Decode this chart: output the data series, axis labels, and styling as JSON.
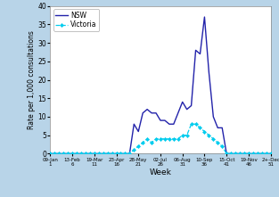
{
  "title": "",
  "xlabel": "Week",
  "ylabel": "Rate per 1,000 consultations",
  "ylim": [
    0,
    40
  ],
  "yticks": [
    0,
    5,
    10,
    15,
    20,
    25,
    30,
    35,
    40
  ],
  "background_color": "#b8d4e8",
  "plot_background": "#ffffff",
  "nsw_color": "#2222aa",
  "vic_color": "#00ccee",
  "xtick_labels": [
    "09-Jan\n1",
    "13-Feb\n6",
    "19-Mar\n11",
    "23-Apr\n16",
    "28-May\n21",
    "02-Jul\n26",
    "06-Aug\n31",
    "10-Sep\n36",
    "15-Oct\n41",
    "19-Nov\n46",
    "2+-Dec\n51"
  ],
  "nsw_x": [
    1,
    2,
    3,
    4,
    5,
    6,
    7,
    8,
    9,
    10,
    11,
    12,
    13,
    14,
    15,
    16,
    17,
    18,
    19,
    20,
    21,
    22,
    23,
    24,
    25,
    26,
    27,
    28,
    29,
    30,
    31,
    32,
    33,
    34,
    35,
    36,
    37,
    38,
    39,
    40,
    41,
    42,
    43,
    44,
    45,
    46,
    47,
    48,
    49,
    50,
    51
  ],
  "nsw_y": [
    0,
    0,
    0,
    0,
    0,
    0,
    0,
    0,
    0,
    0,
    0,
    0,
    0,
    0,
    0,
    0,
    0,
    0,
    0,
    8,
    6,
    11,
    12,
    11,
    11,
    9,
    9,
    8,
    8,
    11,
    14,
    12,
    13,
    28,
    27,
    37,
    22,
    10,
    7,
    7,
    0,
    0,
    0,
    0,
    0,
    0,
    0,
    0,
    0,
    0,
    0
  ],
  "vic_x": [
    1,
    2,
    3,
    4,
    5,
    6,
    7,
    8,
    9,
    10,
    11,
    12,
    13,
    14,
    15,
    16,
    17,
    18,
    19,
    20,
    21,
    22,
    23,
    24,
    25,
    26,
    27,
    28,
    29,
    30,
    31,
    32,
    33,
    34,
    35,
    36,
    37,
    38,
    39,
    40,
    41,
    42,
    43,
    44,
    45,
    46,
    47,
    48,
    49,
    50,
    51
  ],
  "vic_y": [
    0,
    0,
    0,
    0,
    0,
    0,
    0,
    0,
    0,
    0,
    0,
    0,
    0,
    0,
    0,
    0,
    0,
    0,
    0,
    1,
    2,
    3,
    4,
    3,
    4,
    4,
    4,
    4,
    4,
    4,
    5,
    5,
    8,
    8,
    7,
    6,
    5,
    4,
    3,
    2,
    0,
    0,
    0,
    0,
    0,
    0,
    0,
    0,
    0,
    0,
    0
  ],
  "xtick_positions": [
    1,
    6,
    11,
    16,
    21,
    26,
    31,
    36,
    41,
    46,
    51
  ]
}
